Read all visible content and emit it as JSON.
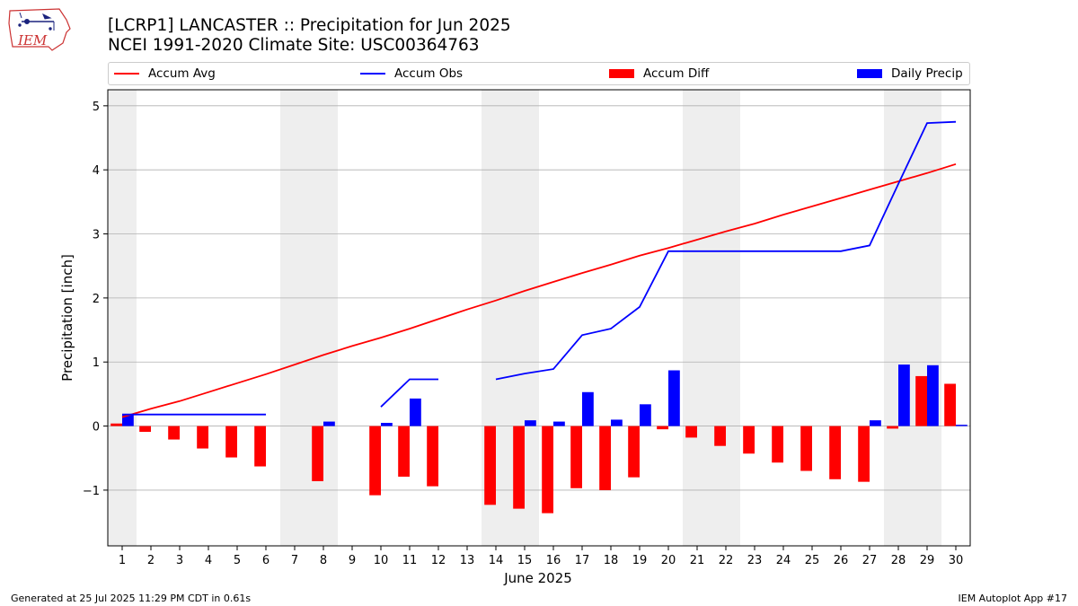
{
  "header": {
    "title_line1": "[LCRP1] LANCASTER :: Precipitation for Jun 2025",
    "title_line2": "NCEI 1991-2020 Climate Site: USC00364763"
  },
  "logo": {
    "text": "IEM"
  },
  "footer": {
    "left": "Generated at 25 Jul 2025 11:29 PM CDT in 0.61s",
    "right": "IEM Autoplot App #17"
  },
  "colors": {
    "accum_avg": "#ff0000",
    "accum_obs": "#0000ff",
    "accum_diff": "#ff0000",
    "daily_precip": "#0000ff",
    "weekend_shade": "#eeeeee",
    "grid": "#b0b0b0"
  },
  "chart_data": {
    "type": "bar",
    "title": "[LCRP1] LANCASTER :: Precipitation for Jun 2025",
    "xlabel": "June 2025",
    "ylabel": "Precipitation [inch]",
    "ylim": [
      -1.87,
      5.25
    ],
    "yticks": [
      -1,
      0,
      1,
      2,
      3,
      4,
      5
    ],
    "ytick_labels": [
      "−1",
      "0",
      "1",
      "2",
      "3",
      "4",
      "5"
    ],
    "grid": "horizontal",
    "legend_placement": "top",
    "days": [
      1,
      2,
      3,
      4,
      5,
      6,
      7,
      8,
      9,
      10,
      11,
      12,
      13,
      14,
      15,
      16,
      17,
      18,
      19,
      20,
      21,
      22,
      23,
      24,
      25,
      26,
      27,
      28,
      29,
      30
    ],
    "shaded_days": [
      [
        1,
        1
      ],
      [
        7,
        8
      ],
      [
        14,
        15
      ],
      [
        21,
        22
      ],
      [
        28,
        29
      ]
    ],
    "series": [
      {
        "name": "Accum Avg",
        "kind": "line",
        "values": [
          0.14,
          0.27,
          0.39,
          0.53,
          0.67,
          0.81,
          0.96,
          1.11,
          1.25,
          1.38,
          1.52,
          1.67,
          1.82,
          1.96,
          2.11,
          2.25,
          2.39,
          2.52,
          2.66,
          2.78,
          2.91,
          3.04,
          3.16,
          3.3,
          3.43,
          3.56,
          3.69,
          3.82,
          3.95,
          4.09
        ]
      },
      {
        "name": "Accum Obs",
        "kind": "line",
        "values": [
          0.18,
          0.18,
          0.18,
          0.18,
          0.18,
          0.18,
          null,
          null,
          null,
          0.3,
          0.73,
          0.73,
          null,
          0.73,
          0.82,
          0.89,
          1.42,
          1.52,
          1.86,
          2.73,
          2.73,
          2.73,
          2.73,
          2.73,
          2.73,
          2.73,
          2.82,
          3.78,
          4.73,
          4.75
        ]
      },
      {
        "name": "Accum Diff",
        "kind": "bar",
        "values": [
          0.04,
          -0.09,
          -0.21,
          -0.35,
          -0.49,
          -0.63,
          null,
          -0.86,
          null,
          -1.08,
          -0.79,
          -0.94,
          null,
          -1.23,
          -1.29,
          -1.36,
          -0.97,
          -1.0,
          -0.8,
          -0.05,
          -0.18,
          -0.31,
          -0.43,
          -0.57,
          -0.7,
          -0.83,
          -0.87,
          -0.04,
          0.78,
          0.66
        ]
      },
      {
        "name": "Daily Precip",
        "kind": "bar",
        "values": [
          0.18,
          0,
          0,
          0,
          0,
          0,
          0,
          0.07,
          0,
          0.05,
          0.43,
          0,
          0,
          0,
          0.09,
          0.07,
          0.53,
          0.1,
          0.34,
          0.87,
          0,
          0,
          0,
          0,
          0,
          0,
          0.09,
          0.96,
          0.95,
          0.02
        ]
      }
    ]
  }
}
